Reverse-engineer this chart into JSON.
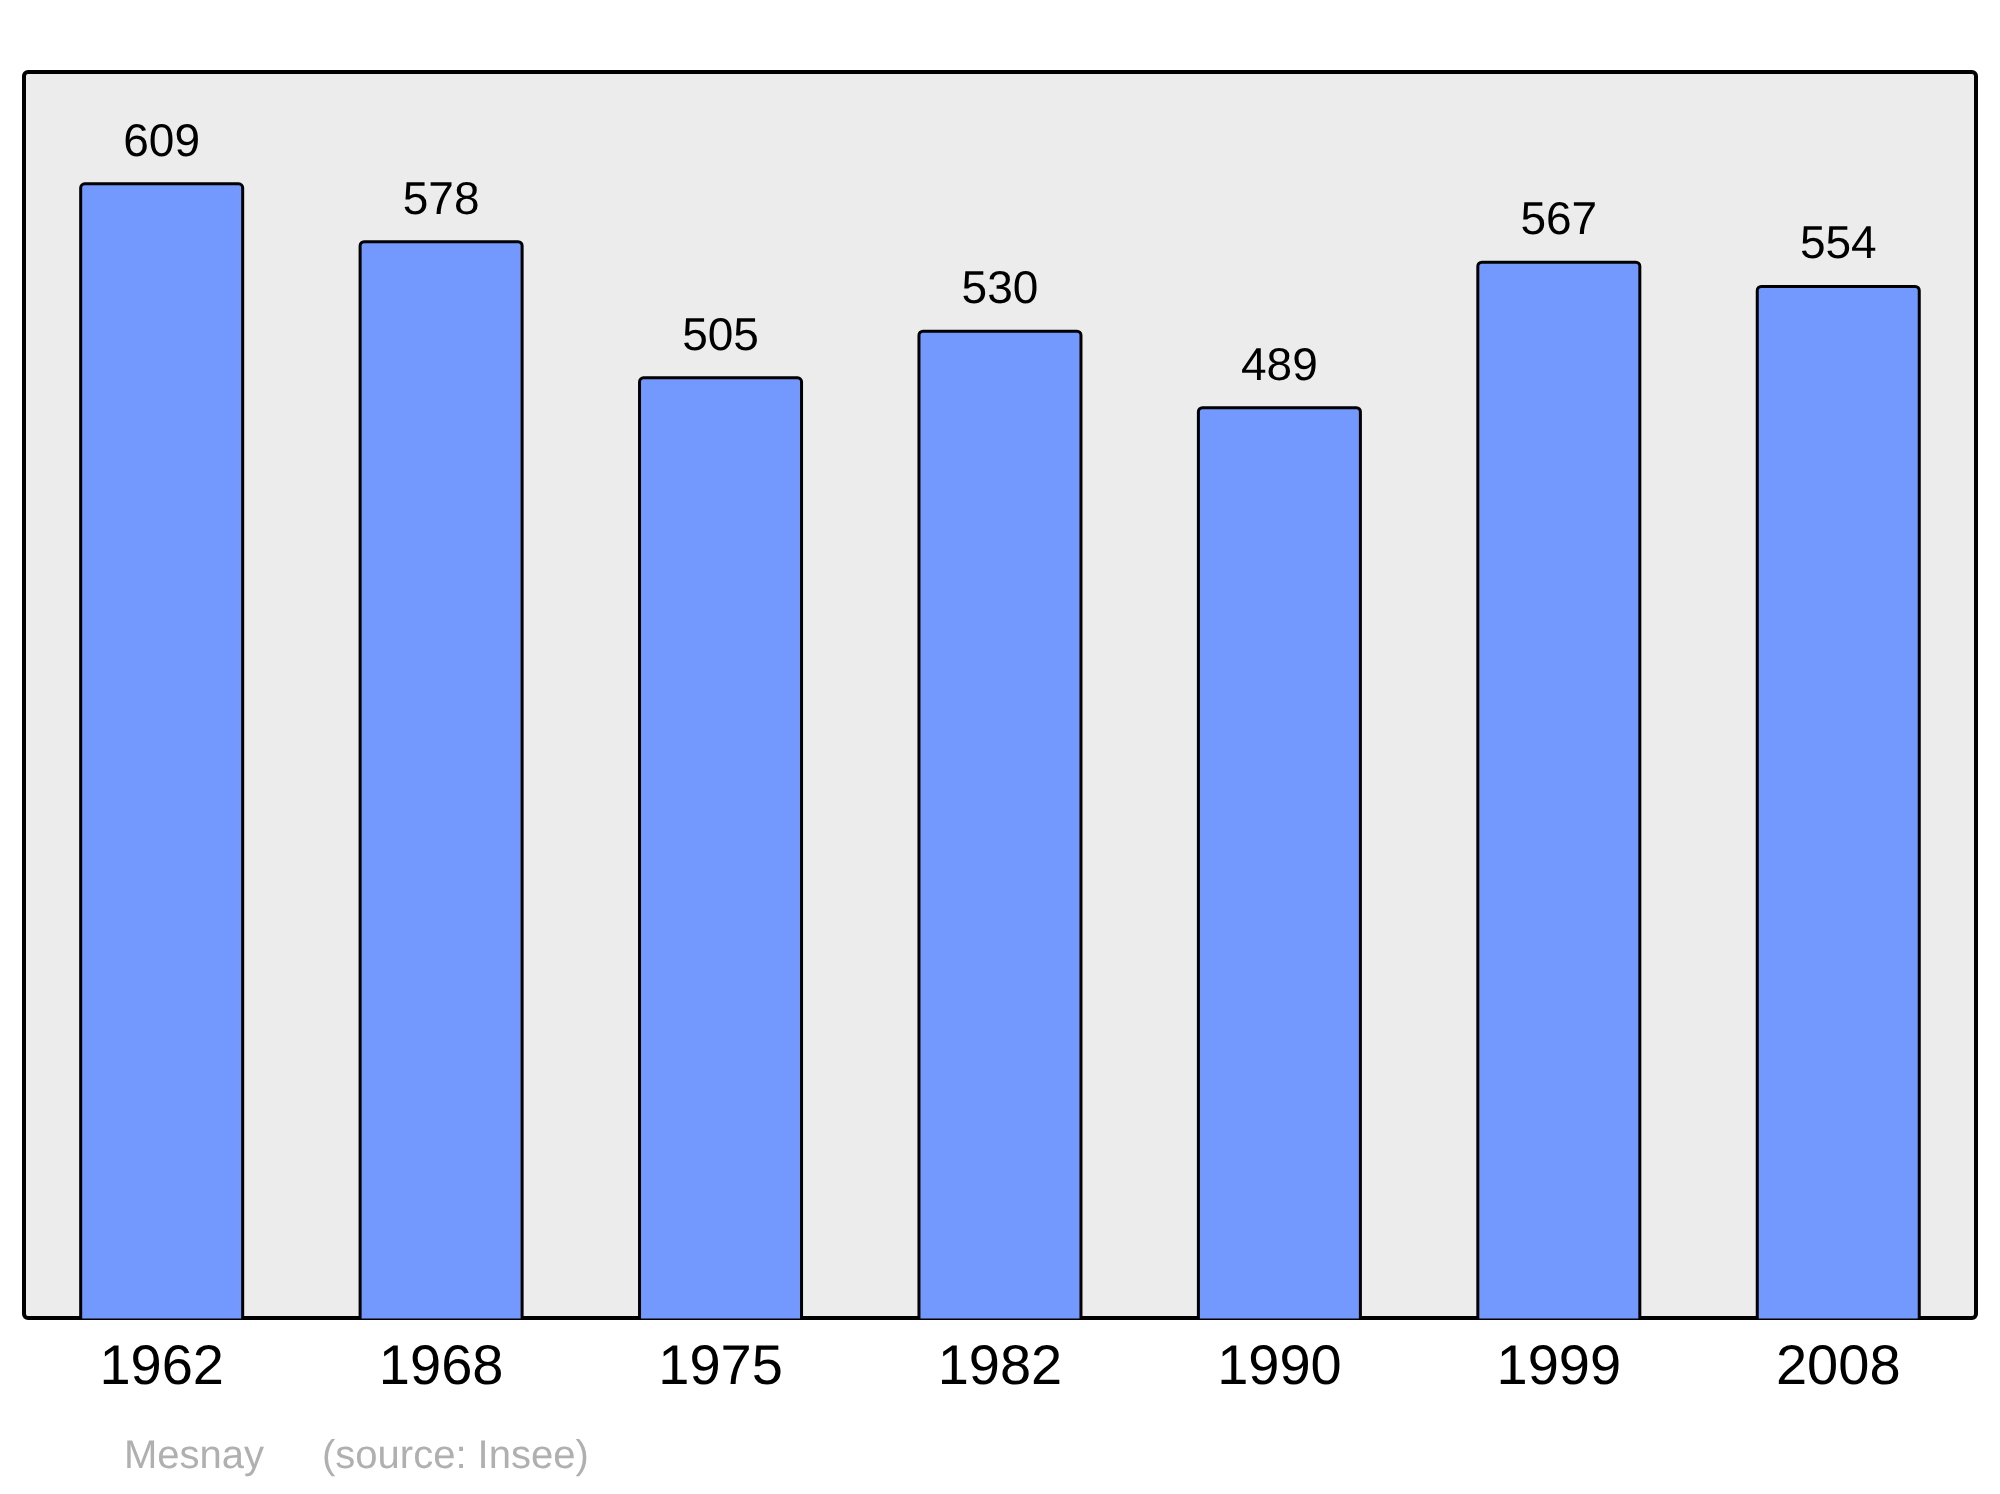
{
  "chart_data": {
    "type": "bar",
    "categories": [
      "1962",
      "1968",
      "1975",
      "1982",
      "1990",
      "1999",
      "2008"
    ],
    "values": [
      609,
      578,
      505,
      530,
      489,
      567,
      554
    ],
    "color": "#7399ff",
    "ylim": [
      0,
      670
    ],
    "data_labels": true,
    "annotations": [
      "Mesnay",
      "(source: Insee)"
    ]
  }
}
